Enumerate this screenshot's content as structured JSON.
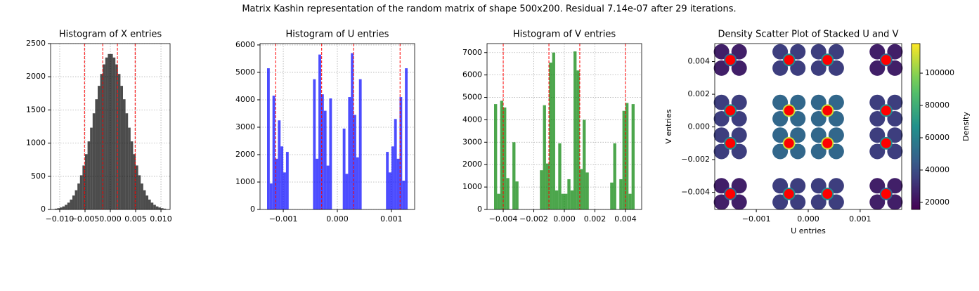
{
  "title": "Matrix Kashin representation of the random matrix of shape 500x200. Residual 7.14e-07 after 29 iterations.",
  "chart_data": [
    {
      "type": "histogram",
      "title": "Histogram of X entries",
      "color": "black",
      "alpha": 0.7,
      "grid": true,
      "bins": [
        -0.011,
        -0.0105,
        -0.01,
        -0.0095,
        -0.009,
        -0.0085,
        -0.008,
        -0.0075,
        -0.007,
        -0.0065,
        -0.006,
        -0.0055,
        -0.005,
        -0.0045,
        -0.004,
        -0.0035,
        -0.003,
        -0.0025,
        -0.002,
        -0.0015,
        -0.001,
        -0.0005,
        0,
        0.0005,
        0.001,
        0.0015,
        0.002,
        0.0025,
        0.003,
        0.0035,
        0.004,
        0.0045,
        0.005,
        0.0055,
        0.006,
        0.0065,
        0.007,
        0.0075,
        0.008,
        0.0085,
        0.009,
        0.0095,
        0.01,
        0.0105,
        0.011
      ],
      "values": [
        12,
        19,
        30,
        46,
        70,
        103,
        149,
        210,
        290,
        391,
        515,
        663,
        834,
        1026,
        1233,
        1449,
        1661,
        1863,
        2042,
        2187,
        2290,
        2343,
        2343,
        2290,
        2187,
        2042,
        1863,
        1661,
        1449,
        1233,
        1026,
        834,
        663,
        515,
        391,
        290,
        210,
        149,
        103,
        70,
        46,
        30,
        19,
        12
      ],
      "vlines": {
        "x": [
          -0.0051,
          -0.0015,
          0.0014,
          0.0049
        ],
        "color": "red"
      },
      "xlim": [
        -0.0118,
        0.0118
      ],
      "xticks": [
        {
          "value": -0.01,
          "label": "−0.010"
        },
        {
          "value": -0.005,
          "label": "−0.005"
        },
        {
          "value": 0,
          "label": "0.000"
        },
        {
          "value": 0.005,
          "label": "0.005"
        },
        {
          "value": 0.01,
          "label": "0.010"
        }
      ],
      "ylim": [
        0,
        2500
      ],
      "yticks": [
        0,
        500,
        1000,
        1500,
        2000,
        2500
      ]
    },
    {
      "type": "histogram",
      "title": "Histogram of U entries",
      "color": "blue",
      "alpha": 0.7,
      "grid": true,
      "bins": [
        -0.0013,
        -0.00125,
        -0.0012,
        -0.00115,
        -0.0011,
        -0.00105,
        -0.001,
        -0.00095,
        -0.0009,
        -0.00085,
        -0.0008,
        -0.00075,
        -0.0007,
        -0.00065,
        -0.0006,
        -0.00055,
        -0.0005,
        -0.00045,
        -0.0004,
        -0.00035,
        -0.0003,
        -0.00025,
        -0.0002,
        -0.00015,
        -0.0001,
        -5e-05,
        0,
        5e-05,
        0.0001,
        0.00015,
        0.0002,
        0.00025,
        0.0003,
        0.00035,
        0.0004,
        0.00045,
        0.0005,
        0.00055,
        0.0006,
        0.00065,
        0.0007,
        0.00075,
        0.0008,
        0.00085,
        0.0009,
        0.00095,
        0.001,
        0.00105,
        0.0011,
        0.00115,
        0.0012,
        0.00125,
        0.0013
      ],
      "values": [
        5150,
        950,
        4150,
        1850,
        3250,
        2300,
        1350,
        2100,
        0,
        0,
        0,
        0,
        0,
        0,
        0,
        0,
        0,
        4750,
        1850,
        5650,
        4200,
        3600,
        1600,
        4050,
        0,
        0,
        0,
        0,
        2950,
        1300,
        4100,
        5700,
        3450,
        1900,
        4750,
        0,
        0,
        0,
        0,
        0,
        0,
        0,
        0,
        0,
        2100,
        1350,
        2300,
        3300,
        1850,
        4100,
        1050,
        5150
      ],
      "vlines": {
        "x": [
          -0.00114,
          -0.00029,
          0.0003,
          0.00116
        ],
        "color": "red"
      },
      "xlim": [
        -0.00143,
        0.00143
      ],
      "xticks": [
        {
          "value": -0.001,
          "label": "−0.001"
        },
        {
          "value": 0,
          "label": "0.000"
        },
        {
          "value": 0.001,
          "label": "0.001"
        }
      ],
      "ylim": [
        0,
        6050
      ],
      "yticks": [
        0,
        1000,
        2000,
        3000,
        4000,
        5000,
        6000
      ]
    },
    {
      "type": "histogram",
      "title": "Histogram of V entries",
      "color": "green",
      "alpha": 0.7,
      "grid": true,
      "bins": [
        -0.0046,
        -0.0044,
        -0.0042,
        -0.004,
        -0.0038,
        -0.0036,
        -0.0034,
        -0.0032,
        -0.003,
        -0.0028,
        -0.0026,
        -0.0024,
        -0.0022,
        -0.002,
        -0.0018,
        -0.0016,
        -0.0014,
        -0.0012,
        -0.001,
        -0.0008,
        -0.0006,
        -0.0004,
        -0.0002,
        0,
        0.0002,
        0.0004,
        0.0006,
        0.0008,
        0.001,
        0.0012,
        0.0014,
        0.0016,
        0.0018,
        0.002,
        0.0022,
        0.0024,
        0.0026,
        0.0028,
        0.003,
        0.0032,
        0.0034,
        0.0036,
        0.0038,
        0.004,
        0.0042,
        0.0044,
        0.0046
      ],
      "values": [
        4700,
        700,
        4850,
        4550,
        1400,
        0,
        3000,
        1250,
        0,
        0,
        0,
        0,
        0,
        0,
        0,
        1750,
        4650,
        2050,
        6550,
        7000,
        850,
        2950,
        700,
        700,
        1350,
        850,
        7050,
        6200,
        1800,
        4000,
        1650,
        0,
        0,
        0,
        0,
        0,
        0,
        0,
        1200,
        2950,
        0,
        1350,
        4400,
        4750,
        700,
        4700
      ],
      "vlines": {
        "x": [
          -0.004,
          -0.00101,
          0.00101,
          0.004
        ],
        "color": "red"
      },
      "xlim": [
        -0.00506,
        0.00506
      ],
      "xticks": [
        {
          "value": -0.004,
          "label": "−0.004"
        },
        {
          "value": -0.002,
          "label": "−0.002"
        },
        {
          "value": 0,
          "label": "0.000"
        },
        {
          "value": 0.002,
          "label": "0.002"
        },
        {
          "value": 0.004,
          "label": "0.004"
        }
      ],
      "ylim": [
        0,
        7400
      ],
      "yticks": [
        0,
        1000,
        2000,
        3000,
        4000,
        5000,
        6000,
        7000
      ]
    },
    {
      "type": "scatter",
      "title": "Density Scatter Plot of Stacked U and V",
      "xlabel": "U entries",
      "ylabel": "V entries",
      "grid": false,
      "density": {
        "x": [
          -0.00167,
          -0.00133,
          -0.00167,
          -0.00133,
          -0.0015,
          -0.00054,
          -0.0002,
          -0.00054,
          -0.0002,
          -0.00037,
          0.0002,
          0.00054,
          0.0002,
          0.00054,
          0.00037,
          0.00133,
          0.00167,
          0.00133,
          0.00167,
          0.0015,
          -0.00167,
          -0.00133,
          -0.00167,
          -0.00133,
          -0.0015,
          -0.00054,
          -0.0002,
          -0.00054,
          -0.0002,
          -0.00037,
          0.0002,
          0.00054,
          0.0002,
          0.00054,
          0.00037,
          0.00133,
          0.00167,
          0.00133,
          0.00167,
          0.0015,
          -0.00167,
          -0.00133,
          -0.00167,
          -0.00133,
          -0.0015,
          -0.00054,
          -0.0002,
          -0.00054,
          -0.0002,
          -0.00037,
          0.0002,
          0.00054,
          0.0002,
          0.00054,
          0.00037,
          0.00133,
          0.00167,
          0.00133,
          0.00167,
          0.0015,
          -0.00167,
          -0.00133,
          -0.00167,
          -0.00133,
          -0.0015,
          -0.00054,
          -0.0002,
          -0.00054,
          -0.0002,
          -0.00037,
          0.0002,
          0.00054,
          0.0002,
          0.00054,
          0.00037,
          0.00133,
          0.00167,
          0.00133,
          0.00167,
          0.0015
        ],
        "y": [
          0.0046,
          0.0046,
          0.0036,
          0.0036,
          0.0041,
          0.0046,
          0.0046,
          0.0036,
          0.0036,
          0.0041,
          0.0046,
          0.0046,
          0.0036,
          0.0036,
          0.0041,
          0.0046,
          0.0046,
          0.0036,
          0.0036,
          0.0041,
          0.0015,
          0.0015,
          0.0005,
          0.0005,
          0.001,
          0.0015,
          0.0015,
          0.0005,
          0.0005,
          0.001,
          0.0015,
          0.0015,
          0.0005,
          0.0005,
          0.001,
          0.0015,
          0.0015,
          0.0005,
          0.0005,
          0.001,
          -0.0005,
          -0.0005,
          -0.0015,
          -0.0015,
          -0.001,
          -0.0005,
          -0.0005,
          -0.0015,
          -0.0015,
          -0.001,
          -0.0005,
          -0.0005,
          -0.0015,
          -0.0015,
          -0.001,
          -0.0005,
          -0.0005,
          -0.0015,
          -0.0015,
          -0.001,
          -0.0036,
          -0.0036,
          -0.0046,
          -0.0046,
          -0.0041,
          -0.0036,
          -0.0036,
          -0.0046,
          -0.0046,
          -0.0041,
          -0.0036,
          -0.0036,
          -0.0046,
          -0.0046,
          -0.0041,
          -0.0036,
          -0.0036,
          -0.0046,
          -0.0046,
          -0.0041
        ],
        "values": [
          25000,
          25000,
          25000,
          25000,
          50000,
          35000,
          35000,
          35000,
          35000,
          65000,
          35000,
          35000,
          35000,
          35000,
          65000,
          25000,
          25000,
          25000,
          25000,
          50000,
          35000,
          35000,
          35000,
          35000,
          65000,
          50000,
          50000,
          50000,
          50000,
          110000,
          50000,
          50000,
          50000,
          50000,
          110000,
          35000,
          35000,
          35000,
          35000,
          65000,
          35000,
          35000,
          35000,
          35000,
          65000,
          50000,
          50000,
          50000,
          50000,
          110000,
          50000,
          50000,
          50000,
          50000,
          110000,
          35000,
          35000,
          35000,
          35000,
          65000,
          25000,
          25000,
          25000,
          25000,
          50000,
          35000,
          35000,
          35000,
          35000,
          65000,
          35000,
          35000,
          35000,
          35000,
          65000,
          25000,
          25000,
          25000,
          25000,
          50000
        ]
      },
      "points": {
        "color": "red",
        "x": [
          -0.0015,
          -0.00037,
          0.00037,
          0.0015,
          -0.0015,
          -0.00037,
          0.00037,
          0.0015,
          -0.0015,
          -0.00037,
          0.00037,
          0.0015,
          -0.0015,
          -0.00037,
          0.00037,
          0.0015
        ],
        "y": [
          0.0041,
          0.0041,
          0.0041,
          0.0041,
          0.001,
          0.001,
          0.001,
          0.001,
          -0.001,
          -0.001,
          -0.001,
          -0.001,
          -0.0041,
          -0.0041,
          -0.0041,
          -0.0041
        ]
      },
      "colorbar": {
        "label": "Density",
        "cmap": "viridis",
        "clim": [
          15600,
          118300
        ],
        "ticks": [
          20000,
          40000,
          60000,
          80000,
          100000
        ]
      },
      "xlim": [
        -0.0018,
        0.0018
      ],
      "xticks": [
        {
          "value": -0.001,
          "label": "−0.001"
        },
        {
          "value": 0,
          "label": "0.000"
        },
        {
          "value": 0.001,
          "label": "0.001"
        }
      ],
      "ylim": [
        -0.00505,
        0.0051
      ],
      "yticks": [
        {
          "value": -0.004,
          "label": "−0.004"
        },
        {
          "value": -0.002,
          "label": "−0.002"
        },
        {
          "value": 0,
          "label": "0.000"
        },
        {
          "value": 0.002,
          "label": "0.002"
        },
        {
          "value": 0.004,
          "label": "0.004"
        }
      ]
    }
  ]
}
